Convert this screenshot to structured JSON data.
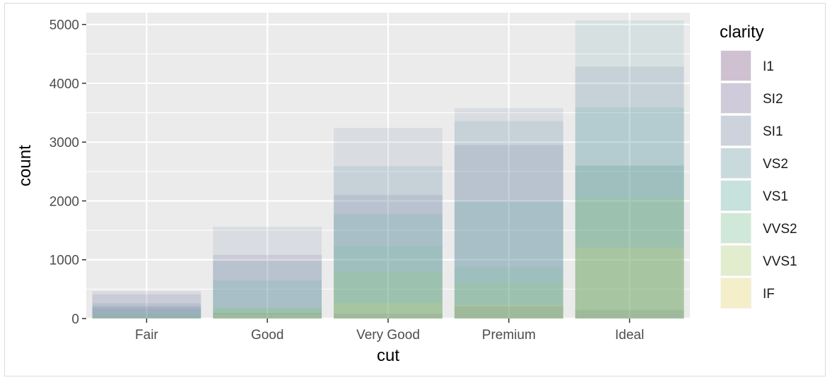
{
  "chart_data": {
    "type": "bar",
    "position": "identity",
    "categories": [
      "Fair",
      "Good",
      "Very Good",
      "Premium",
      "Ideal"
    ],
    "xlabel": "cut",
    "ylabel": "count",
    "ylim": [
      0,
      5200
    ],
    "yticks": [
      0,
      1000,
      2000,
      3000,
      4000,
      5000
    ],
    "grid": true,
    "legend": {
      "title": "clarity",
      "placement": "right"
    },
    "series": [
      {
        "name": "I1",
        "color": "#440154",
        "values": [
          210,
          96,
          84,
          205,
          146
        ]
      },
      {
        "name": "SI2",
        "color": "#46337e",
        "values": [
          466,
          1081,
          2100,
          2949,
          2598
        ]
      },
      {
        "name": "SI1",
        "color": "#365c8d",
        "values": [
          408,
          1560,
          3240,
          3575,
          4282
        ]
      },
      {
        "name": "VS2",
        "color": "#277f8e",
        "values": [
          261,
          978,
          2591,
          3357,
          5071
        ]
      },
      {
        "name": "VS1",
        "color": "#1fa187",
        "values": [
          170,
          648,
          1775,
          1989,
          3589
        ]
      },
      {
        "name": "VVS2",
        "color": "#4ac16d",
        "values": [
          69,
          186,
          1235,
          870,
          2606
        ]
      },
      {
        "name": "VVS1",
        "color": "#a0da39",
        "values": [
          17,
          186,
          789,
          616,
          2047
        ]
      },
      {
        "name": "IF",
        "color": "#fde725",
        "values": [
          9,
          71,
          268,
          230,
          1212
        ]
      }
    ]
  }
}
